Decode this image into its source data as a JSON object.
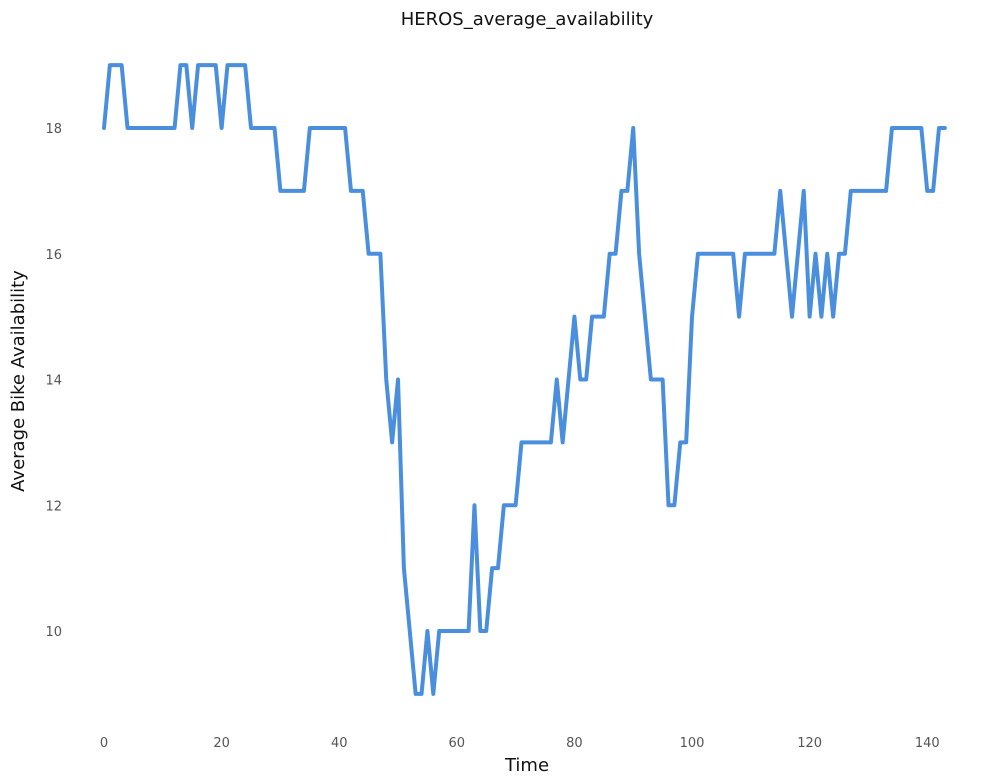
{
  "chart_data": {
    "type": "line",
    "title": "HEROS_average_availability",
    "xlabel": "Time",
    "ylabel": "Average Bike Availability",
    "xlim": [
      -3,
      144
    ],
    "ylim": [
      8.6,
      19.5
    ],
    "xticks": [
      0,
      20,
      40,
      60,
      80,
      100,
      120,
      140
    ],
    "yticks": [
      10,
      12,
      14,
      16,
      18
    ],
    "grid": false,
    "color": "#4a8fde",
    "series": [
      {
        "values": [
          18,
          19,
          19,
          19,
          18,
          18,
          18,
          18,
          18,
          18,
          18,
          18,
          18,
          19,
          19,
          18,
          19,
          19,
          19,
          19,
          18,
          19,
          19,
          19,
          19,
          18,
          18,
          18,
          18,
          18,
          17,
          17,
          17,
          17,
          17,
          18,
          18,
          18,
          18,
          18,
          18,
          18,
          17,
          17,
          17,
          16,
          16,
          16,
          14,
          13,
          14,
          11,
          10,
          9,
          9,
          10,
          9,
          10,
          10,
          10,
          10,
          10,
          10,
          12,
          10,
          10,
          11,
          11,
          12,
          12,
          12,
          13,
          13,
          13,
          13,
          13,
          13,
          14,
          13,
          14,
          15,
          14,
          14,
          15,
          15,
          15,
          16,
          16,
          17,
          17,
          18,
          16,
          15,
          14,
          14,
          14,
          12,
          12,
          13,
          13,
          15,
          16,
          16,
          16,
          16,
          16,
          16,
          16,
          15,
          16,
          16,
          16,
          16,
          16,
          16,
          17,
          16,
          15,
          16,
          17,
          15,
          16,
          15,
          16,
          15,
          16,
          16,
          17,
          17,
          17,
          17,
          17,
          17,
          17,
          18,
          18,
          18,
          18,
          18,
          18,
          17,
          17,
          18,
          18
        ]
      }
    ]
  }
}
